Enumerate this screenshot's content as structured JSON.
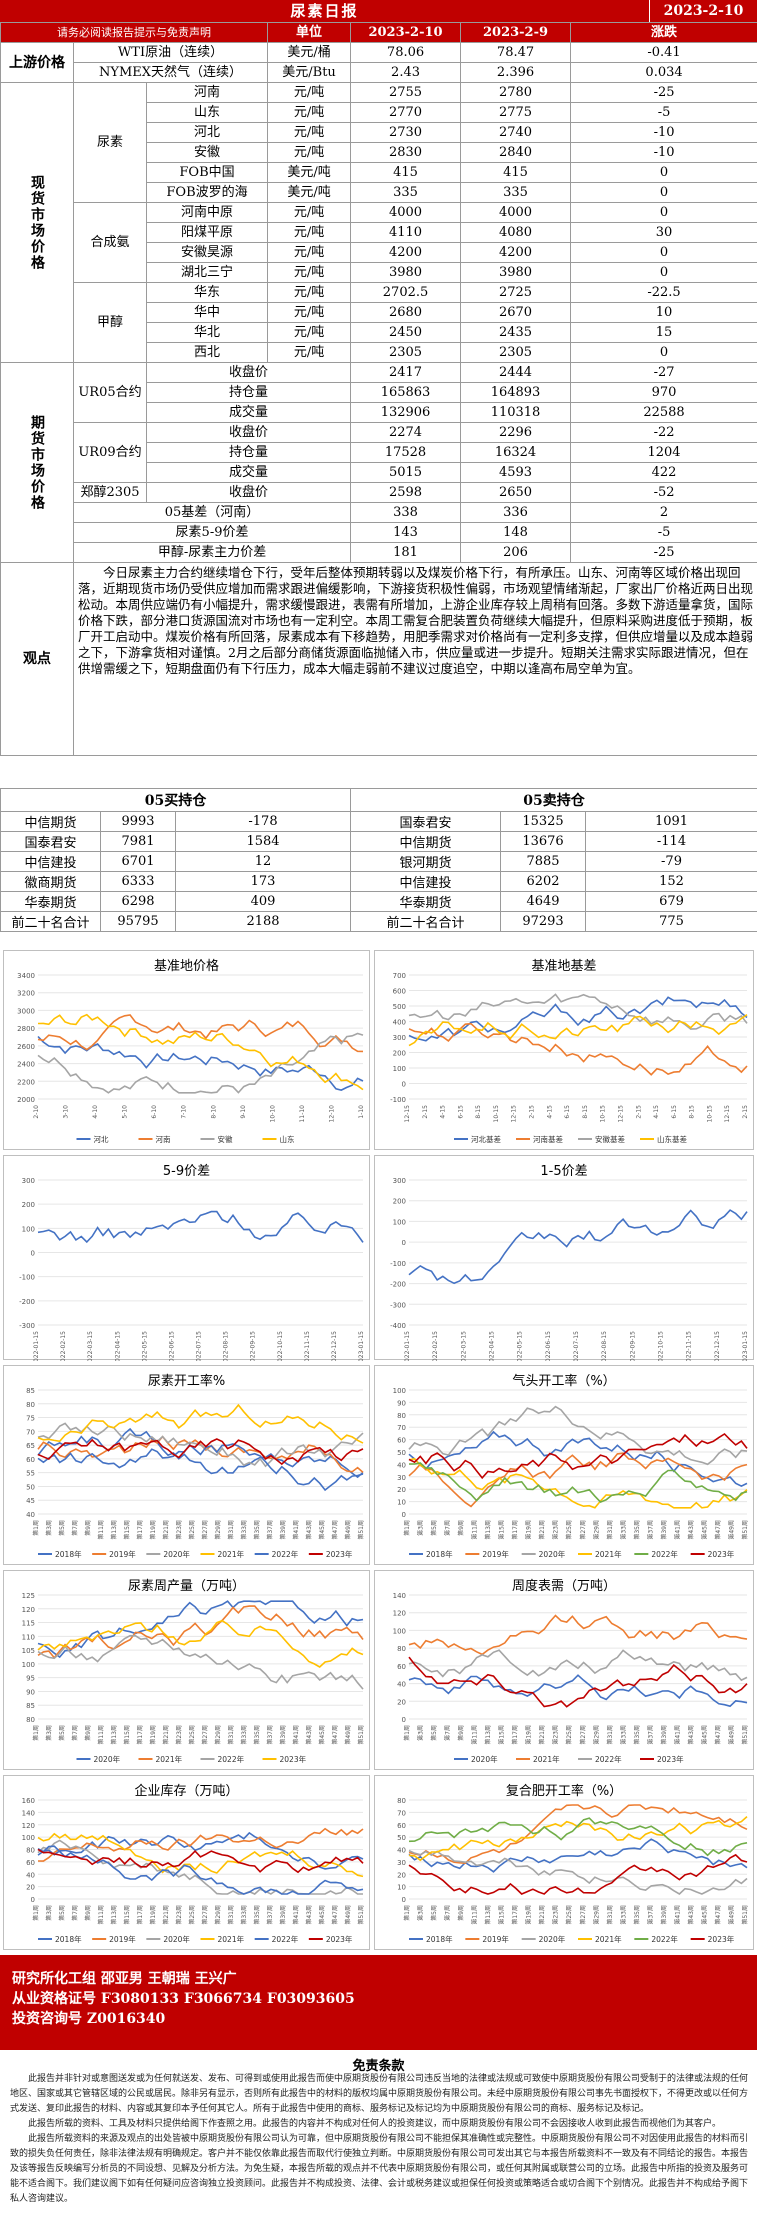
{
  "header": {
    "title": "尿素日报",
    "date": "2023-2-10"
  },
  "columns": {
    "disclaimer_link": "请务必阅读报告提示与免责声明",
    "unit": "单位",
    "d1": "2023-2-10",
    "d2": "2023-2-9",
    "chg": "涨跌"
  },
  "upstream": {
    "label": "上游价格",
    "rows": [
      {
        "name": "WTI原油（连续）",
        "unit": "美元/桶",
        "v1": "78.06",
        "v2": "78.47",
        "chg": "-0.41"
      },
      {
        "name": "NYMEX天然气（连续）",
        "unit": "美元/Btu",
        "v1": "2.43",
        "v2": "2.396",
        "chg": "0.034"
      }
    ]
  },
  "spot": {
    "label": "现货市场价格",
    "urea": {
      "label": "尿素",
      "rows": [
        {
          "name": "河南",
          "unit": "元/吨",
          "v1": "2755",
          "v2": "2780",
          "chg": "-25"
        },
        {
          "name": "山东",
          "unit": "元/吨",
          "v1": "2770",
          "v2": "2775",
          "chg": "-5"
        },
        {
          "name": "河北",
          "unit": "元/吨",
          "v1": "2730",
          "v2": "2740",
          "chg": "-10"
        },
        {
          "name": "安徽",
          "unit": "元/吨",
          "v1": "2830",
          "v2": "2840",
          "chg": "-10"
        },
        {
          "name": "FOB中国",
          "unit": "美元/吨",
          "v1": "415",
          "v2": "415",
          "chg": "0"
        },
        {
          "name": "FOB波罗的海",
          "unit": "美元/吨",
          "v1": "335",
          "v2": "335",
          "chg": "0"
        }
      ]
    },
    "ammonia": {
      "label": "合成氨",
      "rows": [
        {
          "name": "河南中原",
          "unit": "元/吨",
          "v1": "4000",
          "v2": "4000",
          "chg": "0"
        },
        {
          "name": "阳煤平原",
          "unit": "元/吨",
          "v1": "4110",
          "v2": "4080",
          "chg": "30"
        },
        {
          "name": "安徽昊源",
          "unit": "元/吨",
          "v1": "4200",
          "v2": "4200",
          "chg": "0"
        },
        {
          "name": "湖北三宁",
          "unit": "元/吨",
          "v1": "3980",
          "v2": "3980",
          "chg": "0"
        }
      ]
    },
    "methanol": {
      "label": "甲醇",
      "rows": [
        {
          "name": "华东",
          "unit": "元/吨",
          "v1": "2702.5",
          "v2": "2725",
          "chg": "-22.5"
        },
        {
          "name": "华中",
          "unit": "元/吨",
          "v1": "2680",
          "v2": "2670",
          "chg": "10"
        },
        {
          "name": "华北",
          "unit": "元/吨",
          "v1": "2450",
          "v2": "2435",
          "chg": "15"
        },
        {
          "name": "西北",
          "unit": "元/吨",
          "v1": "2305",
          "v2": "2305",
          "chg": "0"
        }
      ]
    }
  },
  "futures": {
    "label": "期货市场价格",
    "ur05": {
      "label": "UR05合约",
      "rows": [
        {
          "name": "收盘价",
          "v1": "2417",
          "v2": "2444",
          "chg": "-27"
        },
        {
          "name": "持仓量",
          "v1": "165863",
          "v2": "164893",
          "chg": "970"
        },
        {
          "name": "成交量",
          "v1": "132906",
          "v2": "110318",
          "chg": "22588"
        }
      ]
    },
    "ur09": {
      "label": "UR09合约",
      "rows": [
        {
          "name": "收盘价",
          "v1": "2274",
          "v2": "2296",
          "chg": "-22"
        },
        {
          "name": "持仓量",
          "v1": "17528",
          "v2": "16324",
          "chg": "1204"
        },
        {
          "name": "成交量",
          "v1": "5015",
          "v2": "4593",
          "chg": "422"
        }
      ]
    },
    "ma": {
      "label": "郑醇2305",
      "name": "收盘价",
      "v1": "2598",
      "v2": "2650",
      "chg": "-52"
    },
    "spreads": [
      {
        "name": "05基差（河南）",
        "v1": "338",
        "v2": "336",
        "chg": "2"
      },
      {
        "name": "尿素5-9价差",
        "v1": "143",
        "v2": "148",
        "chg": "-5"
      },
      {
        "name": "甲醇-尿素主力价差",
        "v1": "181",
        "v2": "206",
        "chg": "-25"
      }
    ]
  },
  "view": {
    "label": "观点",
    "text": "今日尿素主力合约继续增仓下行，受年后整体预期转弱以及煤炭价格下行，有所承压。山东、河南等区域价格出现回落，近期现货市场仍受供应增加而需求跟进偏缓影响，下游接货积极性偏弱，市场观望情绪渐起，厂家出厂价格近两日出现松动。本周供应端仍有小幅提升，需求缓慢跟进，表需有所增加，上游企业库存较上周稍有回落。多数下游适量拿货，国际价格下跌，部分港口货源国流对市场也有一定利空。本周工需复合肥装置负荷继续大幅提升，但原料采购进度低于预期，板厂开工启动中。煤炭价格有所回落，尿素成本有下移趋势，用肥季需求对价格尚有一定利多支撑，但供应增量以及成本趋弱之下，下游拿货相对谨慎。2月之后部分商储货源面临抛储入市，供应量或进一步提升。短期关注需求实际跟进情况，但在供增需缓之下，短期盘面仍有下行压力，成本大幅走弱前不建议过度追空，中期以逢高布局空单为宜。"
  },
  "positions": {
    "long_title": "05买持仓",
    "short_title": "05卖持仓",
    "long": [
      {
        "name": "中信期货",
        "v": "9993",
        "chg": "-178"
      },
      {
        "name": "国泰君安",
        "v": "7981",
        "chg": "1584"
      },
      {
        "name": "中信建投",
        "v": "6701",
        "chg": "12"
      },
      {
        "name": "徽商期货",
        "v": "6333",
        "chg": "173"
      },
      {
        "name": "华泰期货",
        "v": "6298",
        "chg": "409"
      },
      {
        "name": "前二十名合计",
        "v": "95795",
        "chg": "2188"
      }
    ],
    "short": [
      {
        "name": "国泰君安",
        "v": "15325",
        "chg": "1091"
      },
      {
        "name": "中信期货",
        "v": "13676",
        "chg": "-114"
      },
      {
        "name": "银河期货",
        "v": "7885",
        "chg": "-79"
      },
      {
        "name": "中信建投",
        "v": "6202",
        "chg": "152"
      },
      {
        "name": "华泰期货",
        "v": "4649",
        "chg": "679"
      },
      {
        "name": "前二十名合计",
        "v": "97293",
        "chg": "775"
      }
    ]
  },
  "charts": [
    {
      "title": "基准地价格",
      "legend": [
        "河北",
        "河南",
        "安徽",
        "山东"
      ],
      "yticks": [
        "3400",
        "3200",
        "3000",
        "2800",
        "2600",
        "2400",
        "2200",
        "2000"
      ],
      "xticks": [
        "2-10",
        "3-10",
        "4-10",
        "5-10",
        "6-10",
        "7-10",
        "8-10",
        "9-10",
        "10-10",
        "11-10",
        "12-10",
        "1-10"
      ]
    },
    {
      "title": "基准地基差",
      "legend": [
        "河北基差",
        "河南基差",
        "安徽基差",
        "山东基差"
      ],
      "yticks": [
        "700",
        "600",
        "500",
        "400",
        "300",
        "200",
        "100",
        "0",
        "-100"
      ],
      "xticks": [
        "12-15",
        "2-15",
        "4-15",
        "6-15",
        "8-15",
        "10-15",
        "12-15",
        "2-15",
        "4-15",
        "6-15",
        "8-15",
        "10-15",
        "12-15",
        "2-15",
        "4-15",
        "6-15",
        "8-15",
        "10-15",
        "12-15",
        "2-15"
      ]
    },
    {
      "title": "5-9价差",
      "legend": [],
      "yticks": [
        "300",
        "200",
        "100",
        "0",
        "-100",
        "-200",
        "-300"
      ],
      "xticks": [
        "2022-01-15",
        "2022-02-15",
        "2022-03-15",
        "2022-04-15",
        "2022-05-15",
        "2022-06-15",
        "2022-07-15",
        "2022-08-15",
        "2022-09-15",
        "2022-10-15",
        "2022-11-15",
        "2022-12-15",
        "2023-01-15"
      ]
    },
    {
      "title": "1-5价差",
      "legend": [],
      "yticks": [
        "300",
        "200",
        "100",
        "0",
        "-100",
        "-200",
        "-300",
        "-400"
      ],
      "xticks": [
        "2022-01-15",
        "2022-02-15",
        "2022-03-15",
        "2022-04-15",
        "2022-05-15",
        "2022-06-15",
        "2022-07-15",
        "2022-08-15",
        "2022-09-15",
        "2022-10-15",
        "2022-11-15",
        "2022-12-15",
        "2023-01-15"
      ]
    },
    {
      "title": "尿素开工率%",
      "legend": [
        "2018年",
        "2019年",
        "2020年",
        "2021年",
        "2022年",
        "2023年"
      ],
      "yticks": [
        "85",
        "80",
        "75",
        "70",
        "65",
        "60",
        "55",
        "50",
        "45",
        "40"
      ],
      "xticks": [
        "第1周",
        "第3周",
        "第5周",
        "第7周",
        "第9周",
        "第11周",
        "第13周",
        "第15周",
        "第17周",
        "第19周",
        "第21周",
        "第23周",
        "第25周",
        "第27周",
        "第29周",
        "第31周",
        "第33周",
        "第35周",
        "第37周",
        "第39周",
        "第41周",
        "第43周",
        "第45周",
        "第47周",
        "第49周",
        "第51周"
      ]
    },
    {
      "title": "气头开工率（%）",
      "legend": [
        "2018年",
        "2019年",
        "2020年",
        "2021年",
        "2022年",
        "2023年"
      ],
      "yticks": [
        "100",
        "90",
        "80",
        "70",
        "60",
        "50",
        "40",
        "30",
        "20",
        "10",
        "0"
      ],
      "xticks": [
        "第1周",
        "第3周",
        "第5周",
        "第7周",
        "第9周",
        "第11周",
        "第13周",
        "第15周",
        "第17周",
        "第19周",
        "第21周",
        "第23周",
        "第25周",
        "第27周",
        "第29周",
        "第31周",
        "第33周",
        "第35周",
        "第37周",
        "第39周",
        "第41周",
        "第43周",
        "第45周",
        "第47周",
        "第49周",
        "第51周"
      ]
    },
    {
      "title": "尿素周产量（万吨）",
      "legend": [
        "2020年",
        "2021年",
        "2022年",
        "2023年"
      ],
      "yticks": [
        "125",
        "120",
        "115",
        "110",
        "105",
        "100",
        "95",
        "90",
        "85",
        "80"
      ],
      "xticks": [
        "第1周",
        "第3周",
        "第5周",
        "第7周",
        "第9周",
        "第11周",
        "第13周",
        "第15周",
        "第17周",
        "第19周",
        "第21周",
        "第23周",
        "第25周",
        "第27周",
        "第29周",
        "第31周",
        "第33周",
        "第35周",
        "第37周",
        "第39周",
        "第41周",
        "第43周",
        "第45周",
        "第47周",
        "第49周",
        "第51周"
      ]
    },
    {
      "title": "周度表需（万吨）",
      "legend": [
        "2020年",
        "2021年",
        "2022年",
        "2023年"
      ],
      "yticks": [
        "140",
        "120",
        "100",
        "80",
        "60",
        "40",
        "20",
        "0"
      ],
      "xticks": [
        "第1周",
        "第3周",
        "第5周",
        "第7周",
        "第9周",
        "第11周",
        "第13周",
        "第15周",
        "第17周",
        "第19周",
        "第21周",
        "第23周",
        "第25周",
        "第27周",
        "第29周",
        "第31周",
        "第33周",
        "第35周",
        "第37周",
        "第39周",
        "第41周",
        "第43周",
        "第45周",
        "第47周",
        "第49周",
        "第51周"
      ]
    },
    {
      "title": "企业库存（万吨）",
      "legend": [
        "2018年",
        "2019年",
        "2020年",
        "2021年",
        "2022年",
        "2023年"
      ],
      "yticks": [
        "160",
        "140",
        "120",
        "100",
        "80",
        "60",
        "40",
        "20",
        "0"
      ],
      "xticks": [
        "第1周",
        "第3周",
        "第5周",
        "第7周",
        "第9周",
        "第11周",
        "第13周",
        "第15周",
        "第17周",
        "第19周",
        "第21周",
        "第23周",
        "第25周",
        "第27周",
        "第29周",
        "第31周",
        "第33周",
        "第35周",
        "第37周",
        "第39周",
        "第41周",
        "第43周",
        "第45周",
        "第47周",
        "第49周",
        "第51周"
      ]
    },
    {
      "title": "复合肥开工率（%）",
      "legend": [
        "2018年",
        "2019年",
        "2020年",
        "2021年",
        "2022年",
        "2023年"
      ],
      "yticks": [
        "80",
        "70",
        "60",
        "50",
        "40",
        "30",
        "20",
        "10",
        "0"
      ],
      "xticks": [
        "第1周",
        "第3周",
        "第5周",
        "第7周",
        "第9周",
        "第11周",
        "第13周",
        "第15周",
        "第17周",
        "第19周",
        "第21周",
        "第23周",
        "第25周",
        "第27周",
        "第29周",
        "第31周",
        "第33周",
        "第35周",
        "第37周",
        "第39周",
        "第41周",
        "第43周",
        "第45周",
        "第47周",
        "第49周",
        "第51周"
      ]
    }
  ],
  "colors": {
    "red": "#c00000",
    "blue": "#4472c4",
    "orange": "#ed7d31",
    "gray": "#a5a5a5",
    "yellow": "#ffc000",
    "green": "#70ad47",
    "darkred": "#c00000"
  },
  "footer": {
    "line1": "研究所化工组    邵亚男      王朝瑞      王兴广",
    "line2": "从业资格证号    F3080133    F3066734    F03093605",
    "line3": "投资咨询号    Z0016340",
    "disc_title": "免责条款",
    "disc1": "此报告并非针对或意图送发或为任何就送发、发布、可得到或使用此报告而使中原期货股份有限公司违反当地的法律或法规或可致使中原期货股份有限公司受制于的法律或法规的任何地区、国家或其它管辖区域的公民或居民。除非另有显示，否则所有此报告中的材料的版权均属中原期货股份有限公司。未经中原期货股份有限公司事先书面授权下，不得更改或以任何方式发送、复印此报告的材料、内容或其复印本予任何其它人。所有于此报告中使用的商标、服务标记及标记均为中原期货股份有限公司的商标、服务标记及标记。",
    "disc2": "此报告所载的资料、工具及材料只提供给阁下作查照之用。此报告的内容并不构成对任何人的投资建议，而中原期货股份有限公司不会因接收人收到此报告而视他们为其客户。",
    "disc3": "此报告所载资料的来源及观点的出处皆被中原期货股份有限公司认为可靠，但中原期货股份有限公司不能担保其准确性或完整性。中原期货股份有限公司不对因使用此报告的材料而引致的损失负任何责任，除非法律法规有明确规定。客户并不能仅依靠此报告而取代行使独立判断。中原期货股份有限公司可发出其它与本报告所载资料不一致及有不同结论的报告。本报告及该等报告反映编写分析员的不同设想、见解及分析方法。为免生疑，本报告所载的观点并不代表中原期货股份有限公司，或任何其附属或联营公司的立场。此报告中所指的投资及服务可能不适合阁下。我们建议阁下如有任何疑问应咨询独立投资顾问。此报告并不构成投资、法律、会计或税务建议或担保任何投资或策略适合或切合阁下个别情况。此报告并不构成给予阁下私人咨询建议。"
  }
}
